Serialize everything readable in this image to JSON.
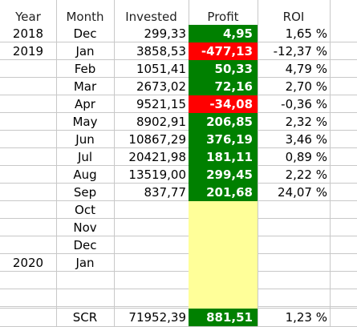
{
  "colors": {
    "positive": "#008000",
    "negative": "#ff0000",
    "empty": "#ffff99"
  },
  "headers": {
    "year": "Year",
    "month": "Month",
    "invested": "Invested",
    "profit": "Profit",
    "roi": "ROI"
  },
  "rows": [
    {
      "year": "2018",
      "month": "Dec",
      "invested": "299,33",
      "profit": "4,95",
      "roi": "1,65 %",
      "status": "pos"
    },
    {
      "year": "2019",
      "month": "Jan",
      "invested": "3858,53",
      "profit": "-477,13",
      "roi": "-12,37 %",
      "status": "neg"
    },
    {
      "year": "",
      "month": "Feb",
      "invested": "1051,41",
      "profit": "50,33",
      "roi": "4,79 %",
      "status": "pos"
    },
    {
      "year": "",
      "month": "Mar",
      "invested": "2673,02",
      "profit": "72,16",
      "roi": "2,70 %",
      "status": "pos"
    },
    {
      "year": "",
      "month": "Apr",
      "invested": "9521,15",
      "profit": "-34,08",
      "roi": "-0,36 %",
      "status": "neg"
    },
    {
      "year": "",
      "month": "May",
      "invested": "8902,91",
      "profit": "206,85",
      "roi": "2,32 %",
      "status": "pos"
    },
    {
      "year": "",
      "month": "Jun",
      "invested": "10867,29",
      "profit": "376,19",
      "roi": "3,46 %",
      "status": "pos"
    },
    {
      "year": "",
      "month": "Jul",
      "invested": "20421,98",
      "profit": "181,11",
      "roi": "0,89 %",
      "status": "pos"
    },
    {
      "year": "",
      "month": "Aug",
      "invested": "13519,00",
      "profit": "299,45",
      "roi": "2,22 %",
      "status": "pos"
    },
    {
      "year": "",
      "month": "Sep",
      "invested": "837,77",
      "profit": "201,68",
      "roi": "24,07 %",
      "status": "pos"
    },
    {
      "year": "",
      "month": "Oct",
      "invested": "",
      "profit": "",
      "roi": "",
      "status": "empty"
    },
    {
      "year": "",
      "month": "Nov",
      "invested": "",
      "profit": "",
      "roi": "",
      "status": "empty"
    },
    {
      "year": "",
      "month": "Dec",
      "invested": "",
      "profit": "",
      "roi": "",
      "status": "empty"
    },
    {
      "year": "2020",
      "month": "Jan",
      "invested": "",
      "profit": "",
      "roi": "",
      "status": "empty"
    },
    {
      "year": "",
      "month": "",
      "invested": "",
      "profit": "",
      "roi": "",
      "status": "empty"
    },
    {
      "year": "",
      "month": "",
      "invested": "",
      "profit": "",
      "roi": "",
      "status": "empty"
    }
  ],
  "total": {
    "label": "SCR",
    "invested": "71952,39",
    "profit": "881,51",
    "roi": "1,23 %",
    "status": "pos"
  }
}
